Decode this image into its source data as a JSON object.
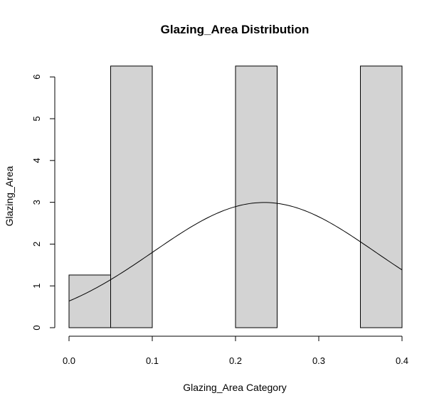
{
  "chart_data": {
    "type": "bar",
    "title": "Glazing_Area Distribution",
    "xlabel": "Glazing_Area Category",
    "ylabel": "Glazing_Area",
    "bins": [
      {
        "x0": 0.0,
        "x1": 0.05,
        "value": 1.26
      },
      {
        "x0": 0.05,
        "x1": 0.1,
        "value": 6.26
      },
      {
        "x0": 0.1,
        "x1": 0.15,
        "value": 0
      },
      {
        "x0": 0.15,
        "x1": 0.2,
        "value": 0
      },
      {
        "x0": 0.2,
        "x1": 0.25,
        "value": 6.26
      },
      {
        "x0": 0.25,
        "x1": 0.3,
        "value": 0
      },
      {
        "x0": 0.3,
        "x1": 0.35,
        "value": 0
      },
      {
        "x0": 0.35,
        "x1": 0.4,
        "value": 6.26
      }
    ],
    "density_curve": {
      "mean": 0.2344,
      "sd": 0.1332
    },
    "xlim": [
      0,
      0.4
    ],
    "ylim": [
      0,
      6.26
    ],
    "x_ticks": [
      0.0,
      0.1,
      0.2,
      0.3,
      0.4
    ],
    "x_tick_labels": [
      "0.0",
      "0.1",
      "0.2",
      "0.3",
      "0.4"
    ],
    "y_ticks": [
      0,
      1,
      2,
      3,
      4,
      5,
      6
    ],
    "y_tick_labels": [
      "0",
      "1",
      "2",
      "3",
      "4",
      "5",
      "6"
    ],
    "bar_fill": "#d3d3d3",
    "bar_stroke": "#000000",
    "curve_color": "#000000",
    "grid": false,
    "legend": "none"
  }
}
